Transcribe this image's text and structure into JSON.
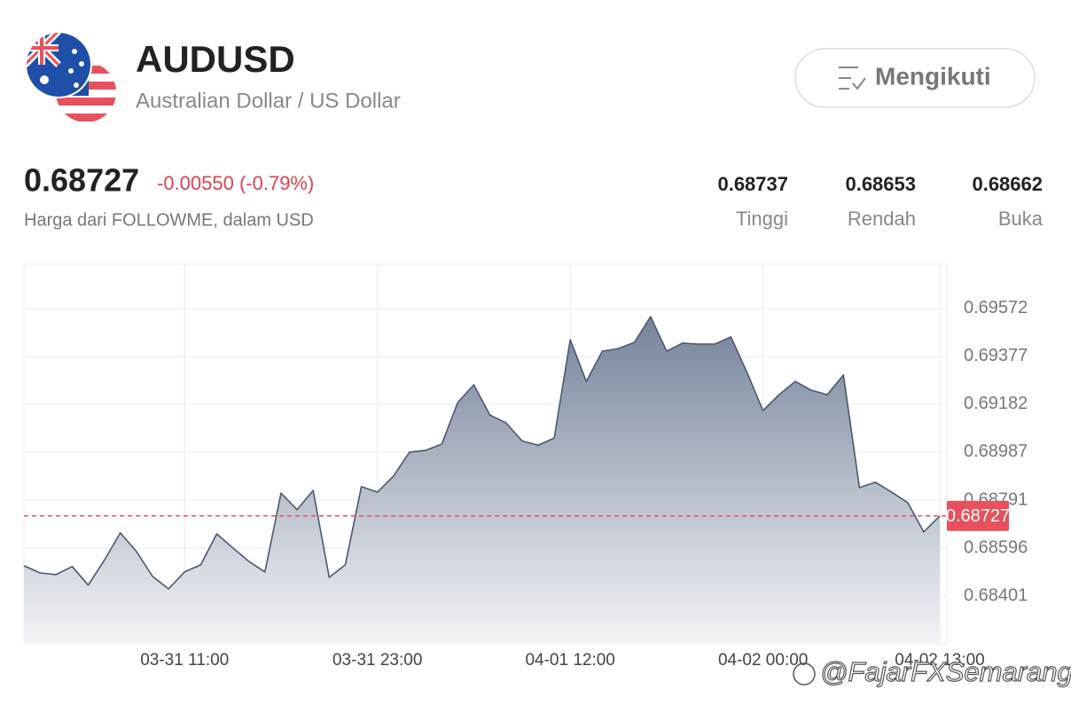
{
  "header": {
    "symbol": "AUDUSD",
    "name": "Australian Dollar / US Dollar",
    "follow_button": "Mengikuti"
  },
  "quote": {
    "price": "0.68727",
    "change": "-0.00550 (-0.79%)",
    "source": "Harga dari FOLLOWME, dalam USD",
    "stats": [
      {
        "value": "0.68737",
        "label": "Tinggi"
      },
      {
        "value": "0.68653",
        "label": "Rendah"
      },
      {
        "value": "0.68662",
        "label": "Buka"
      }
    ]
  },
  "chart_data": {
    "type": "area",
    "categories": [
      null,
      null,
      null,
      null,
      null,
      null,
      null,
      null,
      null,
      null,
      "03-31 11:00",
      null,
      null,
      null,
      null,
      null,
      null,
      null,
      null,
      null,
      null,
      null,
      "03-31 23:00",
      null,
      null,
      null,
      null,
      null,
      null,
      null,
      null,
      null,
      null,
      null,
      "04-01 12:00",
      null,
      null,
      null,
      null,
      null,
      null,
      null,
      null,
      null,
      null,
      null,
      "04-02 00:00",
      null,
      null,
      null,
      null,
      null,
      null,
      null,
      null,
      null,
      null,
      "04-02 13:00"
    ],
    "values": [
      0.68524,
      0.68495,
      0.68488,
      0.68521,
      0.68445,
      0.68546,
      0.68658,
      0.68582,
      0.68481,
      0.6843,
      0.68499,
      0.68528,
      0.68654,
      0.68597,
      0.68542,
      0.68499,
      0.6882,
      0.68752,
      0.68831,
      0.68477,
      0.68528,
      0.68846,
      0.68824,
      0.68889,
      0.68987,
      0.68994,
      0.69019,
      0.69189,
      0.69261,
      0.69138,
      0.69106,
      0.69033,
      0.69015,
      0.69044,
      0.69445,
      0.69275,
      0.69398,
      0.69409,
      0.69434,
      0.69539,
      0.69398,
      0.69431,
      0.69427,
      0.69427,
      0.69456,
      0.69312,
      0.69156,
      0.69221,
      0.69275,
      0.69239,
      0.69221,
      0.69301,
      0.68842,
      0.68864,
      0.68824,
      0.68781,
      0.68662,
      0.68727
    ],
    "ylim": [
      0.68206,
      0.69752
    ],
    "yticks": [
      0.68401,
      0.68596,
      0.68791,
      0.68987,
      0.69182,
      0.69377,
      0.69572
    ],
    "price_line": 0.68727,
    "color": "#4b5870",
    "price_line_color": "#e8505b",
    "grid": true
  },
  "watermark": "@FajarFXSemarang"
}
